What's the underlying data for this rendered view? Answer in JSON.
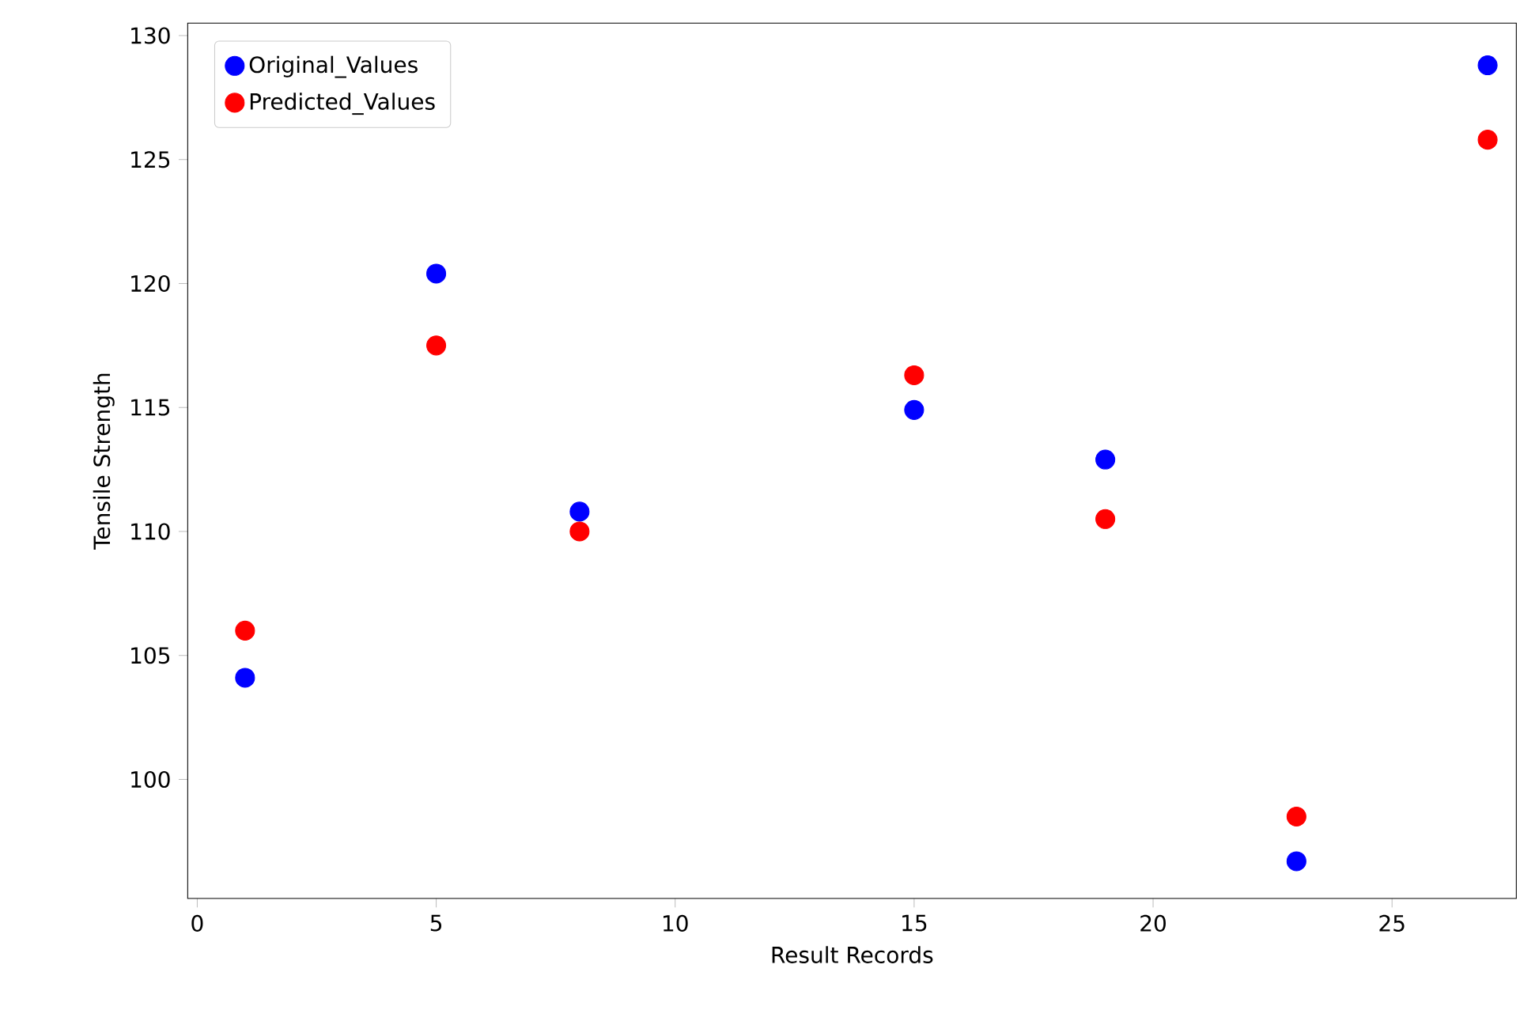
{
  "chart_data": {
    "type": "scatter",
    "xlabel": "Result Records",
    "ylabel": "Tensile Strength",
    "x": [
      1,
      5,
      8,
      15,
      19,
      23,
      27
    ],
    "series": [
      {
        "name": "Original_Values",
        "color": "#0000ff",
        "values": [
          104.1,
          120.4,
          110.8,
          114.9,
          112.9,
          96.7,
          128.8
        ]
      },
      {
        "name": "Predicted_Values",
        "color": "#ff0000",
        "values": [
          106.0,
          117.5,
          110.0,
          116.3,
          110.5,
          98.5,
          125.8
        ]
      }
    ],
    "xlim": [
      -0.2,
      27.6
    ],
    "ylim": [
      95.2,
      130.5
    ],
    "xticks": [
      0,
      5,
      10,
      15,
      20,
      25
    ],
    "yticks": [
      100,
      105,
      110,
      115,
      120,
      125,
      130
    ],
    "legend": "top left",
    "marker": "circle",
    "grid": false
  }
}
